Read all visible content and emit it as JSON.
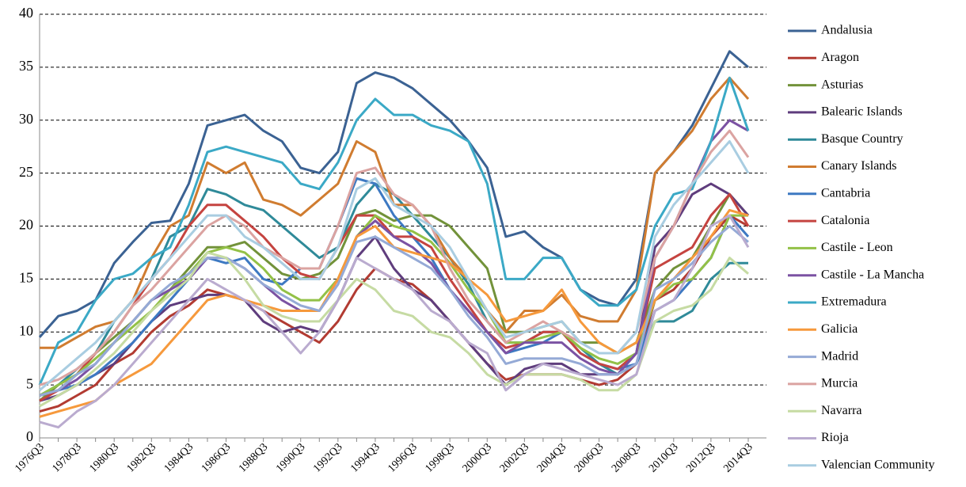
{
  "chart_data": {
    "type": "line",
    "legend": "right",
    "grid": true,
    "categories": [
      "1976Q3",
      null,
      "1978Q3",
      null,
      "1980Q3",
      null,
      "1982Q3",
      null,
      "1984Q3",
      null,
      "1986Q3",
      null,
      "1988Q3",
      null,
      "1990Q3",
      null,
      "1992Q3",
      null,
      "1994Q3",
      null,
      "1996Q3",
      null,
      "1998Q3",
      null,
      "2000Q3",
      null,
      "2002Q3",
      null,
      "2004Q3",
      null,
      "2006Q3",
      null,
      "2008Q3",
      null,
      "2010Q3",
      null,
      "2012Q3",
      null,
      "2014Q3"
    ],
    "ylim": [
      0,
      40
    ],
    "yticks": [
      0,
      5,
      10,
      15,
      20,
      25,
      30,
      35,
      40
    ],
    "series": [
      {
        "name": "Andalusia",
        "color": "#3b6293",
        "values": [
          9.5,
          11.5,
          12,
          13,
          16.5,
          18.5,
          20.3,
          20.5,
          24,
          29.5,
          30,
          30.5,
          29,
          28,
          25.5,
          25,
          27,
          33.5,
          34.5,
          34,
          33,
          31.5,
          30,
          28,
          25.5,
          19,
          19.5,
          18,
          17,
          14,
          13,
          12.5,
          15,
          25,
          27,
          29.5,
          33,
          36.5,
          35
        ]
      },
      {
        "name": "Aragon",
        "color": "#b23b32",
        "values": [
          2.5,
          3,
          4,
          5,
          7,
          8,
          10,
          11.5,
          12.5,
          14,
          13.5,
          13,
          12,
          11,
          10,
          9,
          11,
          14,
          16,
          15,
          14.5,
          13,
          11,
          9,
          7,
          5.5,
          6,
          6,
          6,
          5.5,
          5,
          5.5,
          7,
          13,
          14,
          16,
          19,
          21,
          20
        ]
      },
      {
        "name": "Asturias",
        "color": "#72923a",
        "values": [
          3.5,
          5,
          6,
          8,
          9.5,
          11,
          13,
          14,
          16,
          18,
          18,
          18.5,
          17,
          15.5,
          15,
          15.5,
          17,
          21,
          21.5,
          20.5,
          21,
          21,
          20,
          18,
          16,
          10,
          10,
          10.5,
          11,
          9,
          9,
          8,
          9,
          14,
          16,
          17,
          20,
          23,
          21
        ]
      },
      {
        "name": "Balearic Islands",
        "color": "#5f3d7d",
        "values": [
          3.5,
          4,
          5,
          6,
          7,
          9,
          11,
          12.5,
          13,
          13.5,
          13.5,
          13,
          11,
          10,
          10.5,
          10,
          13,
          17,
          19,
          16,
          14,
          13,
          11,
          9,
          7,
          5,
          6.5,
          7,
          7,
          6,
          6,
          6,
          8,
          18,
          20,
          23,
          24,
          23,
          21
        ]
      },
      {
        "name": "Basque Country",
        "color": "#2f8a99",
        "values": [
          4,
          5,
          6.5,
          8,
          11,
          13,
          15,
          19,
          20,
          23.5,
          23,
          22,
          21.5,
          20,
          18.5,
          17,
          18,
          22,
          24,
          23,
          21,
          19,
          17,
          14.5,
          11,
          9,
          9,
          10,
          10,
          8.5,
          7,
          6,
          7,
          11,
          11,
          12,
          15,
          16.5,
          16.5
        ]
      },
      {
        "name": "Canary Islands",
        "color": "#d07c30",
        "values": [
          8.5,
          8.5,
          9.5,
          10.5,
          11,
          13,
          17,
          20,
          21,
          26,
          25,
          26,
          22.5,
          22,
          21,
          22.5,
          24,
          28,
          27,
          22,
          22,
          20,
          17,
          15,
          12,
          10,
          12,
          12,
          13.5,
          11.5,
          11,
          11,
          14,
          25,
          27,
          29,
          32,
          34,
          32
        ]
      },
      {
        "name": "Cantabria",
        "color": "#3d79c2",
        "values": [
          4,
          4.5,
          5,
          6,
          7.5,
          9,
          11,
          13,
          15,
          17,
          16.5,
          17,
          15,
          14.5,
          16,
          16,
          20,
          24.5,
          24,
          21,
          19,
          17,
          14,
          12,
          10,
          8,
          8.5,
          9,
          10,
          8,
          7,
          6.5,
          7,
          12,
          13,
          15,
          17,
          21,
          19
        ]
      },
      {
        "name": "Catalonia",
        "color": "#c54440",
        "values": [
          3.5,
          4.5,
          6,
          8,
          10,
          12.5,
          15,
          17,
          20,
          22,
          22,
          20.5,
          19,
          17,
          15.5,
          15,
          18,
          21,
          21,
          19,
          19,
          18,
          15,
          12.5,
          10,
          8.5,
          9,
          10,
          10,
          8,
          7,
          6.5,
          8,
          16,
          17,
          18,
          21,
          23,
          20
        ]
      },
      {
        "name": "Castile - Leon",
        "color": "#93c147",
        "values": [
          4,
          5,
          6,
          7.5,
          9,
          10.5,
          12,
          14,
          15.5,
          17.5,
          18,
          17.5,
          16,
          14,
          13,
          13,
          15,
          19,
          21,
          20,
          19.5,
          18.5,
          16.5,
          14,
          12,
          9,
          9,
          9.5,
          10,
          8.5,
          7.5,
          7,
          8,
          13,
          14.5,
          15,
          17,
          21,
          21
        ]
      },
      {
        "name": "Castile - La Mancha",
        "color": "#7b52a3",
        "values": [
          4,
          4.5,
          5.5,
          7,
          9,
          11,
          13,
          14,
          15,
          17,
          17,
          16,
          14.5,
          13,
          12,
          12,
          14.5,
          19,
          20.5,
          19,
          18,
          16.5,
          14,
          12,
          10,
          8,
          9,
          9,
          9,
          7.5,
          6.5,
          6,
          8,
          17,
          20,
          24,
          28,
          30,
          29
        ]
      },
      {
        "name": "Extremadura",
        "color": "#3ba9c6",
        "values": [
          5,
          9,
          10,
          13,
          15,
          15.5,
          17,
          18,
          22,
          27,
          27.5,
          27,
          26.5,
          26,
          24,
          23.5,
          26,
          30,
          32,
          30.5,
          30.5,
          29.5,
          29,
          28,
          24,
          15,
          15,
          17,
          17,
          14,
          12.5,
          12.5,
          14,
          20,
          23,
          23.5,
          28,
          34,
          29
        ]
      },
      {
        "name": "Galicia",
        "color": "#f6993c",
        "values": [
          2,
          2.5,
          3,
          3.5,
          5,
          6,
          7,
          9,
          11,
          13,
          13.5,
          13,
          12.5,
          12,
          12,
          12,
          15,
          19,
          20,
          18,
          17.5,
          17,
          16.5,
          15,
          13.5,
          11,
          11.5,
          12,
          14,
          11,
          9,
          8,
          9,
          13,
          15,
          17,
          19,
          21.5,
          21
        ]
      },
      {
        "name": "Madrid",
        "color": "#95aad6",
        "values": [
          4,
          4.5,
          6,
          7,
          9,
          11,
          13,
          14.5,
          15.5,
          17,
          17,
          16,
          14.5,
          13.5,
          12.5,
          12,
          14.5,
          18.5,
          19,
          18,
          17,
          16,
          14,
          11.5,
          9.5,
          7,
          7.5,
          7.5,
          7.5,
          7,
          6,
          6,
          7,
          14,
          15,
          16.5,
          18.5,
          20,
          18.5
        ]
      },
      {
        "name": "Murcia",
        "color": "#dba3a1",
        "values": [
          5,
          5.5,
          6.5,
          8,
          10,
          12.5,
          14,
          16,
          18,
          20,
          21,
          20,
          18,
          17,
          16,
          16,
          20,
          25,
          25.5,
          23,
          22,
          20,
          16,
          13,
          11,
          9,
          10,
          11,
          10,
          9,
          8,
          8,
          10,
          17,
          20,
          24,
          27,
          29,
          26.5
        ]
      },
      {
        "name": "Navarra",
        "color": "#c6dba3",
        "values": [
          3,
          4,
          5,
          6.5,
          8,
          10,
          12,
          13.5,
          15,
          17.5,
          17,
          15,
          12.5,
          11.5,
          11,
          11,
          13,
          15,
          14,
          12,
          11.5,
          10,
          9.5,
          8,
          6,
          5,
          6,
          6,
          6,
          5.5,
          4.5,
          4.5,
          6,
          11,
          12,
          12.5,
          14,
          17,
          15.5
        ]
      },
      {
        "name": "Rioja",
        "color": "#baabcf",
        "values": [
          1.5,
          1,
          2.5,
          3.5,
          5,
          7,
          9,
          11,
          13,
          15,
          14,
          13,
          12,
          10,
          8,
          10,
          13,
          17,
          16,
          15,
          14,
          12,
          11,
          9,
          8,
          4.5,
          6,
          7,
          6.5,
          6,
          5.5,
          5,
          6,
          12,
          13,
          16,
          20,
          21,
          18
        ]
      },
      {
        "name": "Valencian Community",
        "color": "#a9cde1",
        "values": [
          4.5,
          6,
          7.5,
          9,
          11,
          13,
          15,
          17,
          19,
          21,
          21,
          19,
          18,
          16.5,
          15,
          15,
          18,
          23.5,
          24.5,
          22,
          21,
          20,
          18,
          15,
          12,
          9.5,
          10,
          10.5,
          11,
          9,
          8,
          8,
          10,
          19,
          22,
          24,
          26,
          28,
          25
        ]
      }
    ]
  }
}
